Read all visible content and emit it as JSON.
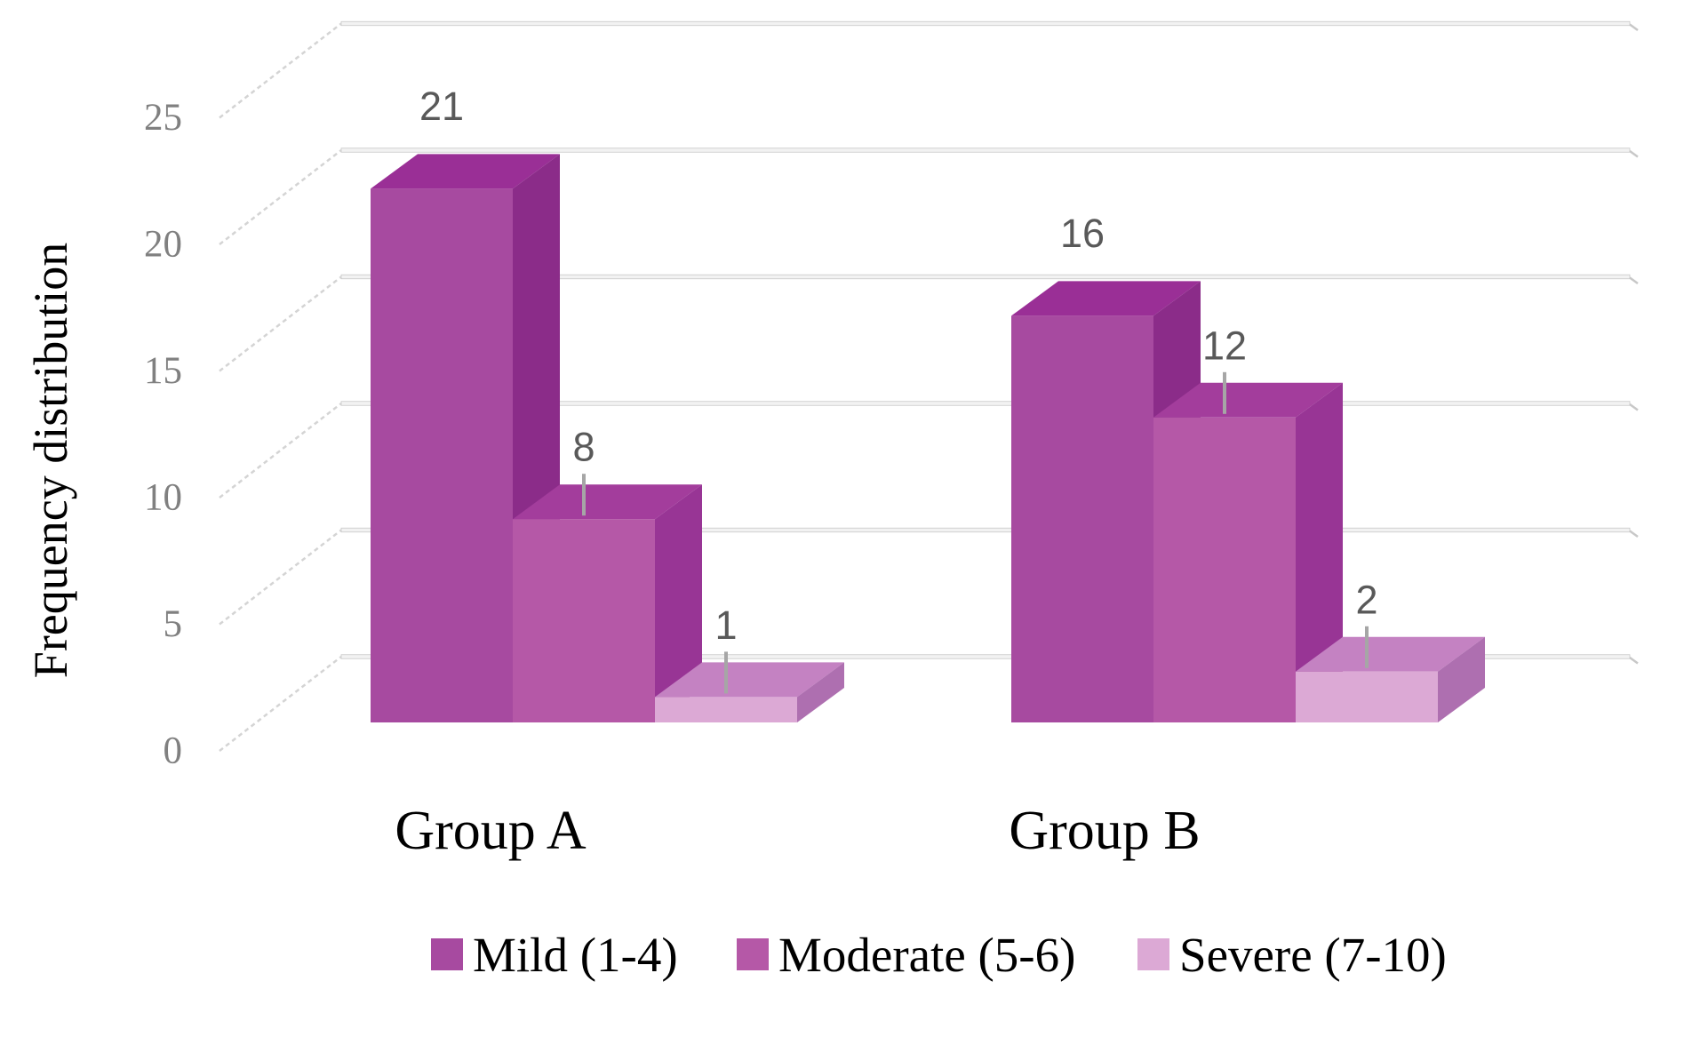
{
  "chart_data": {
    "type": "bar",
    "variant": "3d-clustered-column",
    "title": "",
    "xlabel": "",
    "ylabel": "Frequency distribution",
    "categories": [
      "Group A",
      "Group B"
    ],
    "series": [
      {
        "name": "Mild (1-4)",
        "values": [
          21,
          16
        ],
        "color_front": "#A74AA0",
        "color_top": "#9A2F96",
        "color_side": "#8B2C89"
      },
      {
        "name": "Moderate (5-6)",
        "values": [
          8,
          12
        ],
        "color_front": "#B558A7",
        "color_top": "#A33D9C",
        "color_side": "#983595"
      },
      {
        "name": "Severe (7-10)",
        "values": [
          1,
          2
        ],
        "color_front": "#DCA9D5",
        "color_top": "#C482C2",
        "color_side": "#AE6FB0"
      }
    ],
    "data_labels": {
      "shown": true,
      "values": [
        [
          21,
          8,
          1
        ],
        [
          16,
          12,
          2
        ]
      ],
      "color": "#595959",
      "leader_line_color": "#A6A6A6"
    },
    "y_axis": {
      "min": 0,
      "max": 25,
      "step": 5,
      "ticks": [
        0,
        5,
        10,
        15,
        20,
        25
      ],
      "tick_label_color": "#808080"
    },
    "grid": {
      "shown": true,
      "line_color": "#C8C8C8",
      "band_fill": "#F2F2F2"
    },
    "legend": {
      "position": "bottom",
      "entries": [
        "Mild (1-4)",
        "Moderate (5-6)",
        "Severe (7-10)"
      ]
    },
    "background": "#FFFFFF"
  }
}
